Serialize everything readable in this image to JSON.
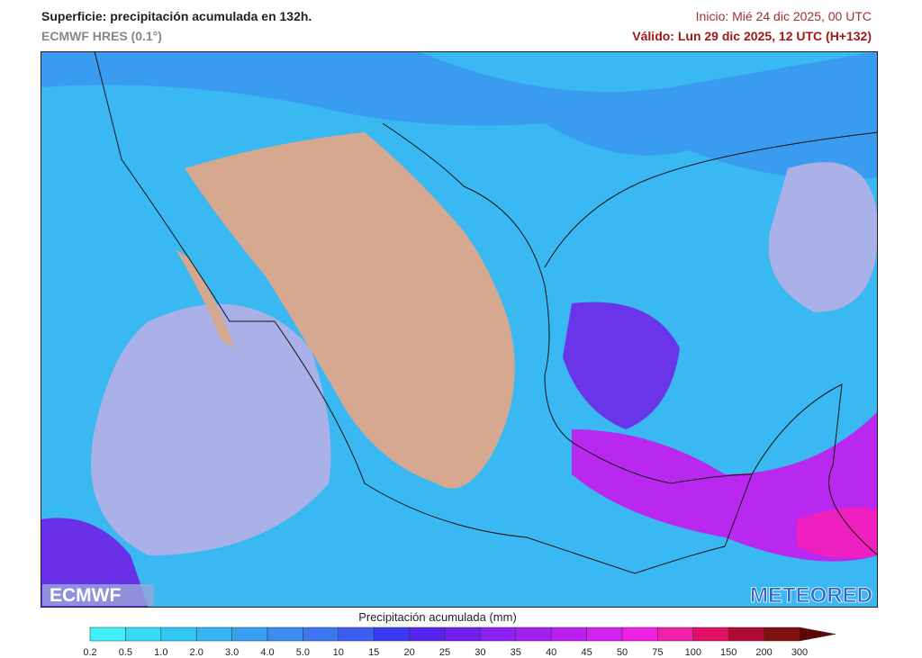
{
  "header": {
    "title": "Superficie: precipitación acumulada en 132h.",
    "model": "ECMWF HRES (0.1°)",
    "init": "Inicio: Mié 24 dic 2025, 00 UTC",
    "valid": "Válido: Lun 29 dic 2025, 12 UTC (H+132)"
  },
  "logos": {
    "left": "ECMWF",
    "right": "METEORED"
  },
  "colorbar": {
    "title": "Precipitación acumulada (mm)",
    "labels": [
      "0.2",
      "0.5",
      "1.0",
      "2.0",
      "3.0",
      "4.0",
      "5.0",
      "10",
      "15",
      "20",
      "25",
      "30",
      "35",
      "40",
      "45",
      "50",
      "75",
      "100",
      "150",
      "200",
      "300"
    ],
    "colors": [
      "#40f2f8",
      "#36dcf6",
      "#30c8f2",
      "#34b4f0",
      "#38a0f0",
      "#3a8cf0",
      "#3c76f0",
      "#3c5ef0",
      "#3a3af0",
      "#5524f0",
      "#7220f0",
      "#8c20f0",
      "#a420f0",
      "#bc20f0",
      "#d420f0",
      "#ee20e4",
      "#f020a8",
      "#e01064",
      "#b00a34",
      "#801010"
    ],
    "overflow_color": "#5c0808"
  }
}
